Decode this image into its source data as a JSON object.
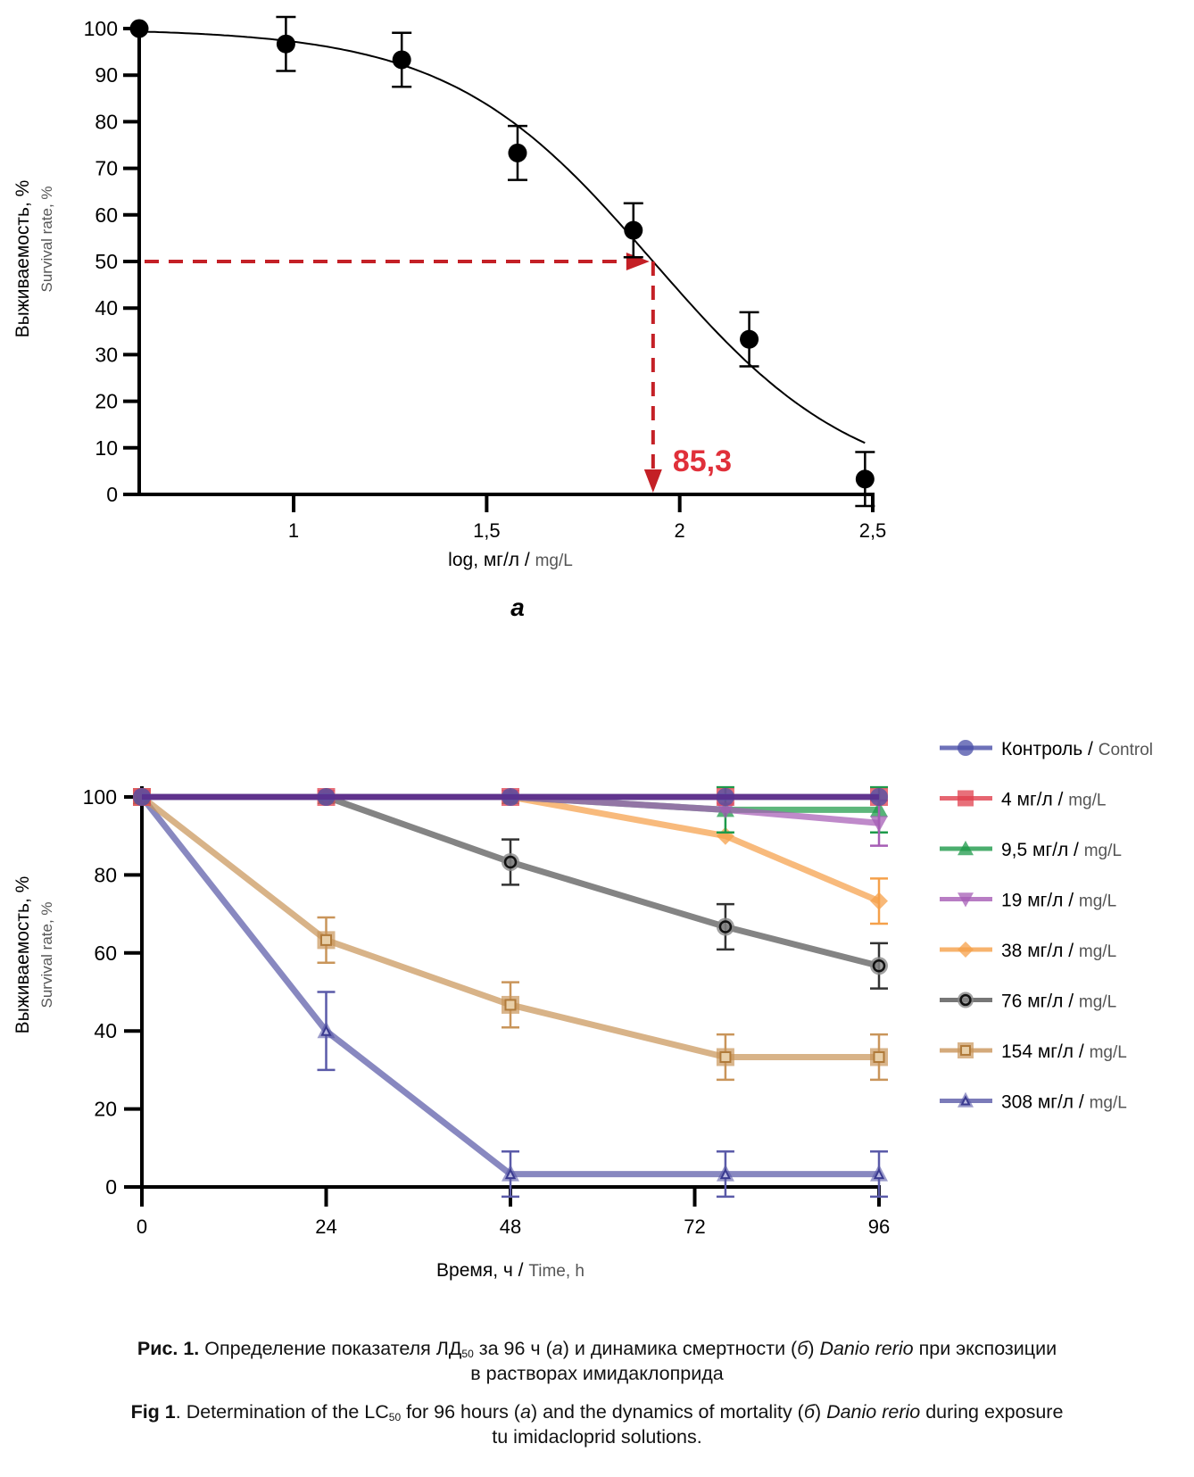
{
  "chart_data": [
    {
      "id": "a",
      "type": "scatter",
      "panel_label": "а",
      "title": "",
      "xlabel_ru": "log, мг/л",
      "xlabel_sep": " / ",
      "xlabel_en": "mg/L",
      "ylabel_ru": "Выживаемость, %",
      "ylabel_en": "Survival rate, %",
      "xlim": [
        0.6,
        2.5
      ],
      "ylim": [
        0,
        100
      ],
      "xticks": [
        1,
        1.5,
        2,
        2.5
      ],
      "xtick_labels": [
        "1",
        "1,5",
        "2",
        "2,5"
      ],
      "yticks": [
        0,
        10,
        20,
        30,
        40,
        50,
        60,
        70,
        80,
        90,
        100
      ],
      "ytick_labels": [
        "0",
        "10",
        "20",
        "30",
        "40",
        "50",
        "60",
        "70",
        "80",
        "90",
        "100"
      ],
      "grid": false,
      "points": [
        {
          "x": 0.6,
          "y": 100,
          "err": 0
        },
        {
          "x": 0.98,
          "y": 96.7,
          "err": 5.8
        },
        {
          "x": 1.28,
          "y": 93.3,
          "err": 5.8
        },
        {
          "x": 1.58,
          "y": 73.3,
          "err": 5.8
        },
        {
          "x": 1.88,
          "y": 56.7,
          "err": 5.8
        },
        {
          "x": 2.18,
          "y": 33.3,
          "err": 5.8
        },
        {
          "x": 2.48,
          "y": 3.3,
          "err": 5.8
        }
      ],
      "fit_curve": {
        "model": "sigmoid",
        "top": 100,
        "bottom": 0,
        "x50": 1.931,
        "hill_slope": 1.65,
        "x_range": [
          0.6,
          2.48
        ]
      },
      "annotation": {
        "label": "85,3",
        "x": 1.931,
        "y": 50,
        "color": "#c42026",
        "label_color": "#e0303a"
      }
    },
    {
      "id": "b",
      "type": "line",
      "panel_label": "б",
      "title": "",
      "xlabel_ru": "Время, ч",
      "xlabel_sep": " / ",
      "xlabel_en": "Time, h",
      "ylabel_ru": "Выживаемость, %",
      "ylabel_en": "Survival rate, %",
      "xlim": [
        0,
        96
      ],
      "ylim": [
        0,
        100
      ],
      "xticks": [
        0,
        24,
        48,
        72,
        96
      ],
      "xtick_labels": [
        "0",
        "24",
        "48",
        "72",
        "96"
      ],
      "yticks": [
        0,
        20,
        40,
        60,
        80,
        100
      ],
      "ytick_labels": [
        "0",
        "20",
        "40",
        "60",
        "80",
        "100"
      ],
      "grid": false,
      "legend_position": "right",
      "x": [
        0,
        24,
        48,
        76,
        96
      ],
      "series": [
        {
          "name_ru": "Контроль",
          "name_en": "Control",
          "color": "#4a4fa8",
          "marker": "circle",
          "values": [
            100,
            100,
            100,
            100,
            100
          ],
          "errors": [
            0,
            0,
            0,
            0,
            0
          ]
        },
        {
          "name_ru": "4 мг/л",
          "name_en": "mg/L",
          "color": "#e0404e",
          "marker": "square",
          "values": [
            100,
            100,
            100,
            100,
            100
          ],
          "errors": [
            0,
            0,
            0,
            0,
            0
          ]
        },
        {
          "name_ru": "9,5 мг/л",
          "name_en": "mg/L",
          "color": "#1e9a4a",
          "marker": "triangle-up",
          "values": [
            100,
            100,
            100,
            96.7,
            96.7
          ],
          "errors": [
            0,
            0,
            0,
            5.8,
            5.8
          ]
        },
        {
          "name_ru": "19 мг/л",
          "name_en": "mg/L",
          "color": "#a65db5",
          "marker": "triangle-down",
          "values": [
            100,
            100,
            100,
            96.7,
            93.3
          ],
          "errors": [
            0,
            0,
            0,
            0,
            5.8
          ]
        },
        {
          "name_ru": "38 мг/л",
          "name_en": "mg/L",
          "color": "#f5a04a",
          "marker": "diamond",
          "values": [
            100,
            100,
            100,
            90,
            73.3
          ],
          "errors": [
            0,
            0,
            0,
            0,
            5.8
          ]
        },
        {
          "name_ru": "76 мг/л",
          "name_en": "mg/L",
          "color": "#555555",
          "marker": "ring",
          "values": [
            100,
            100,
            83.3,
            66.7,
            56.7
          ],
          "errors": [
            0,
            0,
            5.8,
            5.8,
            5.8
          ]
        },
        {
          "name_ru": "154 мг/л",
          "name_en": "mg/L",
          "color": "#c9955a",
          "marker": "open-square",
          "values": [
            100,
            63.3,
            46.7,
            33.3,
            33.3
          ],
          "errors": [
            0,
            5.8,
            5.8,
            5.8,
            5.8
          ]
        },
        {
          "name_ru": "308 мг/л",
          "name_en": "mg/L",
          "color": "#5a5aa8",
          "marker": "open-triangle",
          "values": [
            100,
            40,
            3.3,
            3.3,
            3.3
          ],
          "errors": [
            0,
            10,
            5.8,
            5.8,
            5.8
          ]
        }
      ]
    }
  ],
  "caption": {
    "ru": {
      "prefix": "Рис. 1.",
      "t1": " Определение показателя ЛД",
      "sub": "50",
      "t2": " за 96 ч (",
      "a": "а",
      "t3": ") и динамика смертности (",
      "b": "б",
      "t4": ") ",
      "species": "Danio rerio",
      "t5": " при экспозиции",
      "line2": "в растворах имидаклоприда"
    },
    "en": {
      "prefix": "Fig 1",
      "t1": ". Determination of the LC",
      "sub": "50",
      "t2": " for 96 hours (",
      "a": "а",
      "t3": ") and the dynamics of mortality (",
      "b": "б",
      "t4": ") ",
      "species": "Danio rerio",
      "t5": " during exposure",
      "line2": "tu imidacloprid solutions."
    }
  }
}
